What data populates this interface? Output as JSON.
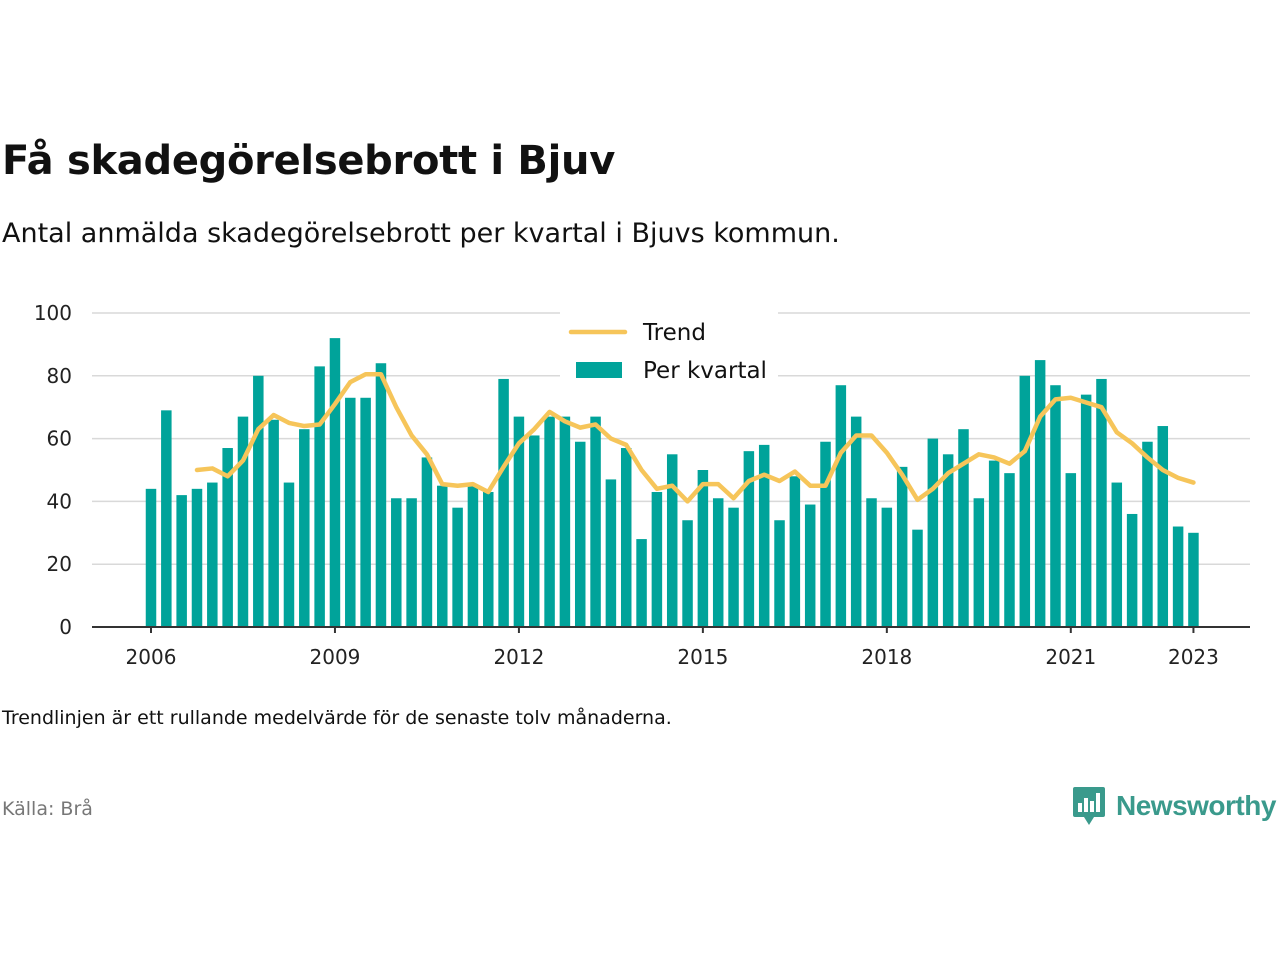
{
  "title": "Få skadegörelsebrott i Bjuv",
  "subtitle": "Antal anmälda skadegörelsebrott per kvartal i Bjuvs kommun.",
  "note": "Trendlinjen är ett rullande medelvärde för de senaste tolv månaderna.",
  "source": "Källa: Brå",
  "brand": {
    "name": "Newsworthy",
    "icon": "newsworthy-chart-bubble-icon",
    "color": "#3a9a8c"
  },
  "colors": {
    "bar": "#00a39a",
    "trend": "#f6c55a",
    "grid": "#d9d9d9",
    "axis": "#333333"
  },
  "chart_data": {
    "type": "bar",
    "start_quarter": "2006 Q1",
    "x_ticks": [
      "2006",
      "2009",
      "2012",
      "2015",
      "2018",
      "2021",
      "2023"
    ],
    "y_ticks": [
      0,
      20,
      40,
      60,
      80,
      100
    ],
    "ylim": [
      0,
      100
    ],
    "grid": true,
    "legend_position": "top-center",
    "series": [
      {
        "name": "Trend",
        "type": "line",
        "color": "#f6c55a",
        "values": [
          null,
          null,
          null,
          50,
          50.5,
          48,
          53,
          63,
          67.5,
          65,
          64,
          64.5,
          71,
          78,
          80.5,
          80.5,
          70,
          61,
          55,
          45.5,
          45,
          45.5,
          43,
          51,
          58.5,
          63,
          68.5,
          65.5,
          63.5,
          64.5,
          60,
          58,
          50,
          44,
          45,
          40,
          45.5,
          45.5,
          41,
          46.5,
          48.5,
          46.5,
          49.5,
          45,
          45,
          55.5,
          61,
          61,
          55.5,
          48.5,
          40.5,
          44,
          49,
          52,
          55,
          54,
          52,
          56,
          67,
          72.5,
          73,
          71.5,
          70,
          62,
          58.5,
          54,
          50,
          47.5,
          46
        ]
      },
      {
        "name": "Per kvartal",
        "type": "bar",
        "color": "#00a39a",
        "values": [
          44,
          69,
          42,
          44,
          46,
          57,
          67,
          80,
          66,
          46,
          63,
          83,
          92,
          73,
          73,
          84,
          41,
          41,
          54,
          45,
          38,
          45,
          43,
          79,
          67,
          61,
          67,
          67,
          59,
          67,
          47,
          57,
          28,
          43,
          55,
          34,
          50,
          41,
          38,
          56,
          58,
          34,
          48,
          39,
          59,
          77,
          67,
          41,
          38,
          51,
          31,
          60,
          55,
          63,
          41,
          53,
          49,
          80,
          85,
          77,
          49,
          74,
          79,
          46,
          36,
          59,
          64,
          32,
          30
        ]
      }
    ]
  }
}
